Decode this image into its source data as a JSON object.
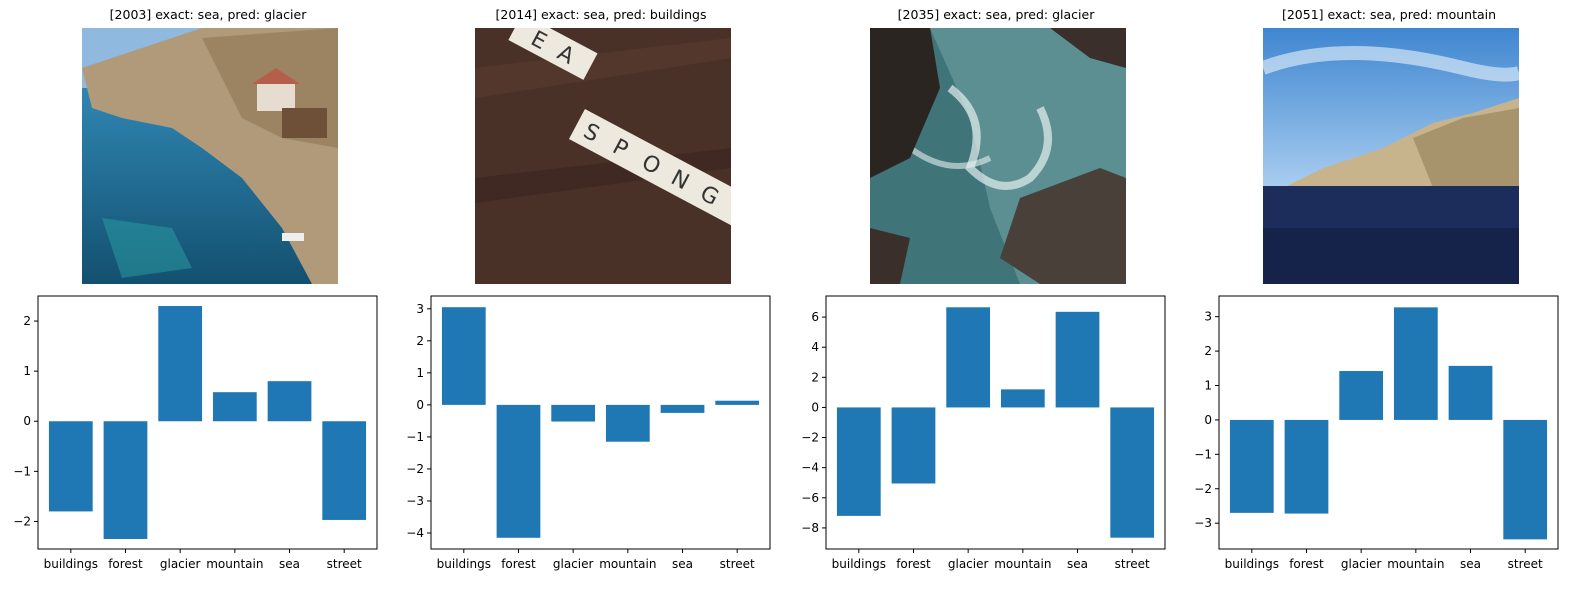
{
  "panels": [
    {
      "title": "[2003] exact: sea, pred: glacier",
      "image": "coastal-village-sea"
    },
    {
      "title": "[2014] exact: sea, pred: buildings",
      "image": "scrabble-tiles-sea-sponge"
    },
    {
      "title": "[2035] exact: sea, pred: glacier",
      "image": "rocky-sea-waves"
    },
    {
      "title": "[2051] exact: sea, pred: mountain",
      "image": "cliff-over-sea"
    }
  ],
  "colors": {
    "bar": "#1f77b4",
    "axis": "#000000"
  },
  "chart_data": [
    {
      "type": "bar",
      "categories": [
        "buildings",
        "forest",
        "glacier",
        "mountain",
        "sea",
        "street"
      ],
      "values": [
        -1.8,
        -2.35,
        2.3,
        0.58,
        0.8,
        -1.97
      ],
      "ylim": [
        -2.55,
        2.5
      ],
      "yticks": [
        -2,
        -1,
        0,
        1,
        2
      ],
      "grid": false
    },
    {
      "type": "bar",
      "categories": [
        "buildings",
        "forest",
        "glacier",
        "mountain",
        "sea",
        "street"
      ],
      "values": [
        3.05,
        -4.15,
        -0.52,
        -1.15,
        -0.25,
        0.13
      ],
      "ylim": [
        -4.5,
        3.4
      ],
      "yticks": [
        -4,
        -3,
        -2,
        -1,
        0,
        1,
        2,
        3
      ],
      "grid": false
    },
    {
      "type": "bar",
      "categories": [
        "buildings",
        "forest",
        "glacier",
        "mountain",
        "sea",
        "street"
      ],
      "values": [
        -7.2,
        -5.05,
        6.65,
        1.2,
        6.35,
        -8.65
      ],
      "ylim": [
        -9.4,
        7.4
      ],
      "yticks": [
        -8,
        -6,
        -4,
        -2,
        0,
        2,
        4,
        6
      ],
      "grid": false
    },
    {
      "type": "bar",
      "categories": [
        "buildings",
        "forest",
        "glacier",
        "mountain",
        "sea",
        "street"
      ],
      "values": [
        -2.7,
        -2.72,
        1.42,
        3.27,
        1.57,
        -3.47
      ],
      "ylim": [
        -3.75,
        3.6
      ],
      "yticks": [
        -3,
        -2,
        -1,
        0,
        1,
        2,
        3
      ],
      "grid": false
    }
  ]
}
